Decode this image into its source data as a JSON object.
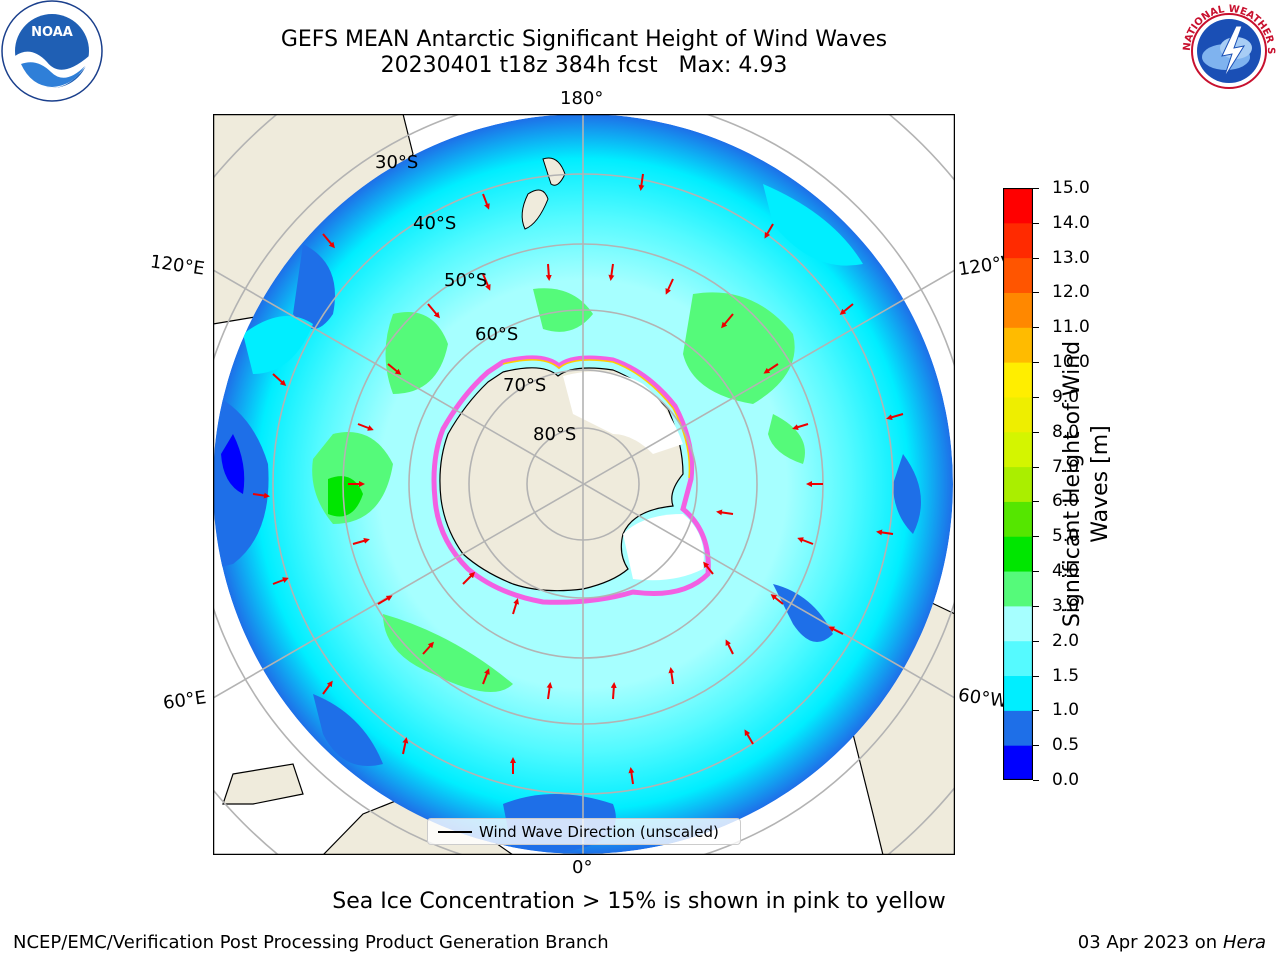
{
  "header": {
    "title_line1": "GEFS MEAN Antarctic Significant Height of Wind Waves",
    "title_line2": "20230401 t18z 384h fcst   Max: 4.93"
  },
  "logos": {
    "left": "NOAA",
    "right": "NATIONAL WEATHER SERVICE"
  },
  "map": {
    "projection": "south-polar-stereographic",
    "longitude_labels": {
      "top": "180°",
      "bottom": "0°",
      "upper_left": "120°E",
      "upper_right": "120°W",
      "lower_left": "60°E",
      "lower_right": "60°W"
    },
    "latitude_labels": [
      "30°S",
      "40°S",
      "50°S",
      "60°S",
      "70°S",
      "80°S"
    ],
    "legend_label": "Wind Wave Direction (unscaled)"
  },
  "colorbar": {
    "title": "Significant Height of Wind Waves [m]",
    "ticks": [
      "0.0",
      "0.5",
      "1.0",
      "1.5",
      "2.0",
      "3.0",
      "4.0",
      "5.0",
      "6.0",
      "7.0",
      "8.0",
      "9.0",
      "10.0",
      "11.0",
      "12.0",
      "13.0",
      "14.0",
      "15.0"
    ],
    "colors": [
      "#0000ff",
      "#1e6fe8",
      "#00eeff",
      "#55faff",
      "#a6ffff",
      "#55fa7a",
      "#00e600",
      "#55e600",
      "#aaee00",
      "#d4f500",
      "#eeee00",
      "#ffee00",
      "#ffbb00",
      "#ff8800",
      "#ff5500",
      "#ff2a00",
      "#ff0000"
    ]
  },
  "note": "Sea Ice Concentration > 15% is shown in pink to yellow",
  "footer": {
    "left": "NCEP/EMC/Verification Post Processing Product Generation Branch",
    "date": "03 Apr 2023 on ",
    "host": "Hera"
  }
}
